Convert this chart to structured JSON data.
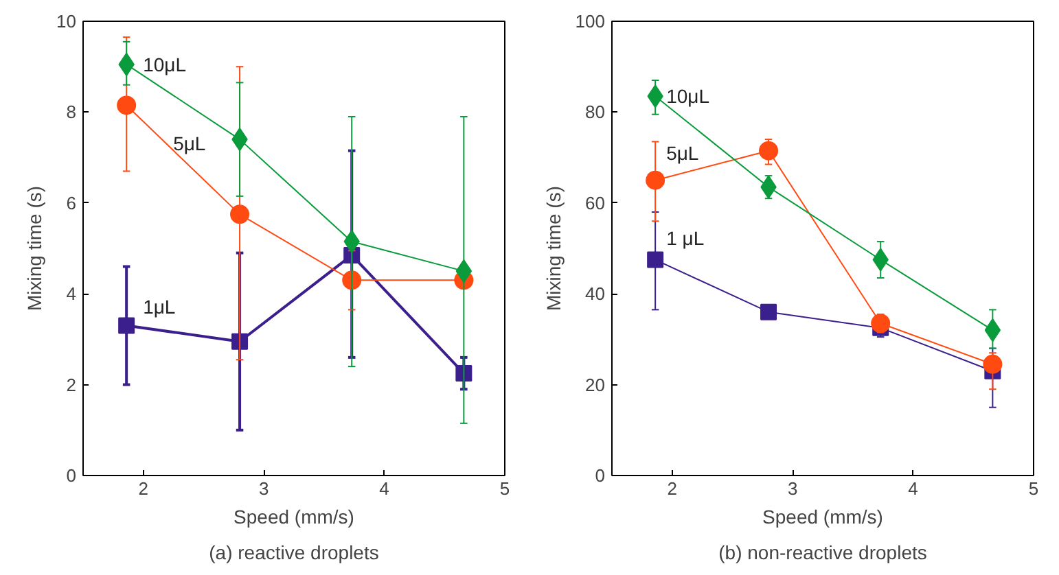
{
  "chart_data": [
    {
      "type": "line",
      "title": "(a) reactive droplets",
      "xlabel": "Speed (mm/s)",
      "ylabel": "Mixing time (s)",
      "xlim": [
        1.5,
        5
      ],
      "xticks": [
        2,
        3,
        4,
        5
      ],
      "ylim": [
        0,
        10
      ],
      "yticks": [
        0,
        2,
        4,
        6,
        8,
        10
      ],
      "grid": false,
      "x": [
        1.86,
        2.8,
        3.73,
        4.66
      ],
      "series": [
        {
          "name": "10μL",
          "color": "#0a9b3c",
          "marker": "diamond",
          "values": [
            9.05,
            7.4,
            5.15,
            4.5
          ],
          "errors": [
            [
              8.6,
              9.55
            ],
            [
              6.15,
              8.65
            ],
            [
              2.4,
              7.9
            ],
            [
              1.15,
              7.9
            ]
          ]
        },
        {
          "name": "5μL",
          "color": "#ff4a12",
          "marker": "circle",
          "values": [
            8.15,
            5.75,
            4.3,
            4.3
          ],
          "errors": [
            [
              6.7,
              9.65
            ],
            [
              2.55,
              9.0
            ],
            [
              3.65,
              4.95
            ],
            null
          ]
        },
        {
          "name": "1μL",
          "color": "#3b1f8c",
          "marker": "square",
          "values": [
            3.3,
            2.95,
            4.85,
            2.25
          ],
          "errors": [
            [
              2.0,
              4.6
            ],
            [
              1.0,
              4.9
            ],
            [
              2.6,
              7.15
            ],
            [
              1.9,
              2.6
            ]
          ]
        }
      ]
    },
    {
      "type": "line",
      "title": "(b) non-reactive droplets",
      "xlabel": "Speed (mm/s)",
      "ylabel": "Mixing time (s)",
      "xlim": [
        1.5,
        5
      ],
      "xticks": [
        2,
        3,
        4,
        5
      ],
      "ylim": [
        0,
        100
      ],
      "yticks": [
        0,
        20,
        40,
        60,
        80,
        100
      ],
      "grid": false,
      "x": [
        1.86,
        2.8,
        3.73,
        4.66
      ],
      "series": [
        {
          "name": "10μL",
          "color": "#0a9b3c",
          "marker": "diamond",
          "values": [
            83.5,
            63.5,
            47.5,
            32
          ],
          "errors": [
            [
              79.5,
              87
            ],
            [
              61,
              66
            ],
            [
              43.5,
              51.5
            ],
            [
              28,
              36.5
            ]
          ]
        },
        {
          "name": "5μL",
          "color": "#ff4a12",
          "marker": "circle",
          "values": [
            65,
            71.5,
            33.5,
            24.5
          ],
          "errors": [
            [
              56,
              73.5
            ],
            [
              68.5,
              74
            ],
            [
              31.5,
              35.5
            ],
            [
              19,
              27
            ]
          ]
        },
        {
          "name": "1 μL",
          "color": "#3b1f8c",
          "marker": "square",
          "values": [
            47.5,
            36,
            32.5,
            23
          ],
          "errors": [
            [
              36.5,
              58
            ],
            null,
            [
              30.5,
              32.5
            ],
            [
              15,
              28
            ]
          ]
        }
      ]
    }
  ]
}
